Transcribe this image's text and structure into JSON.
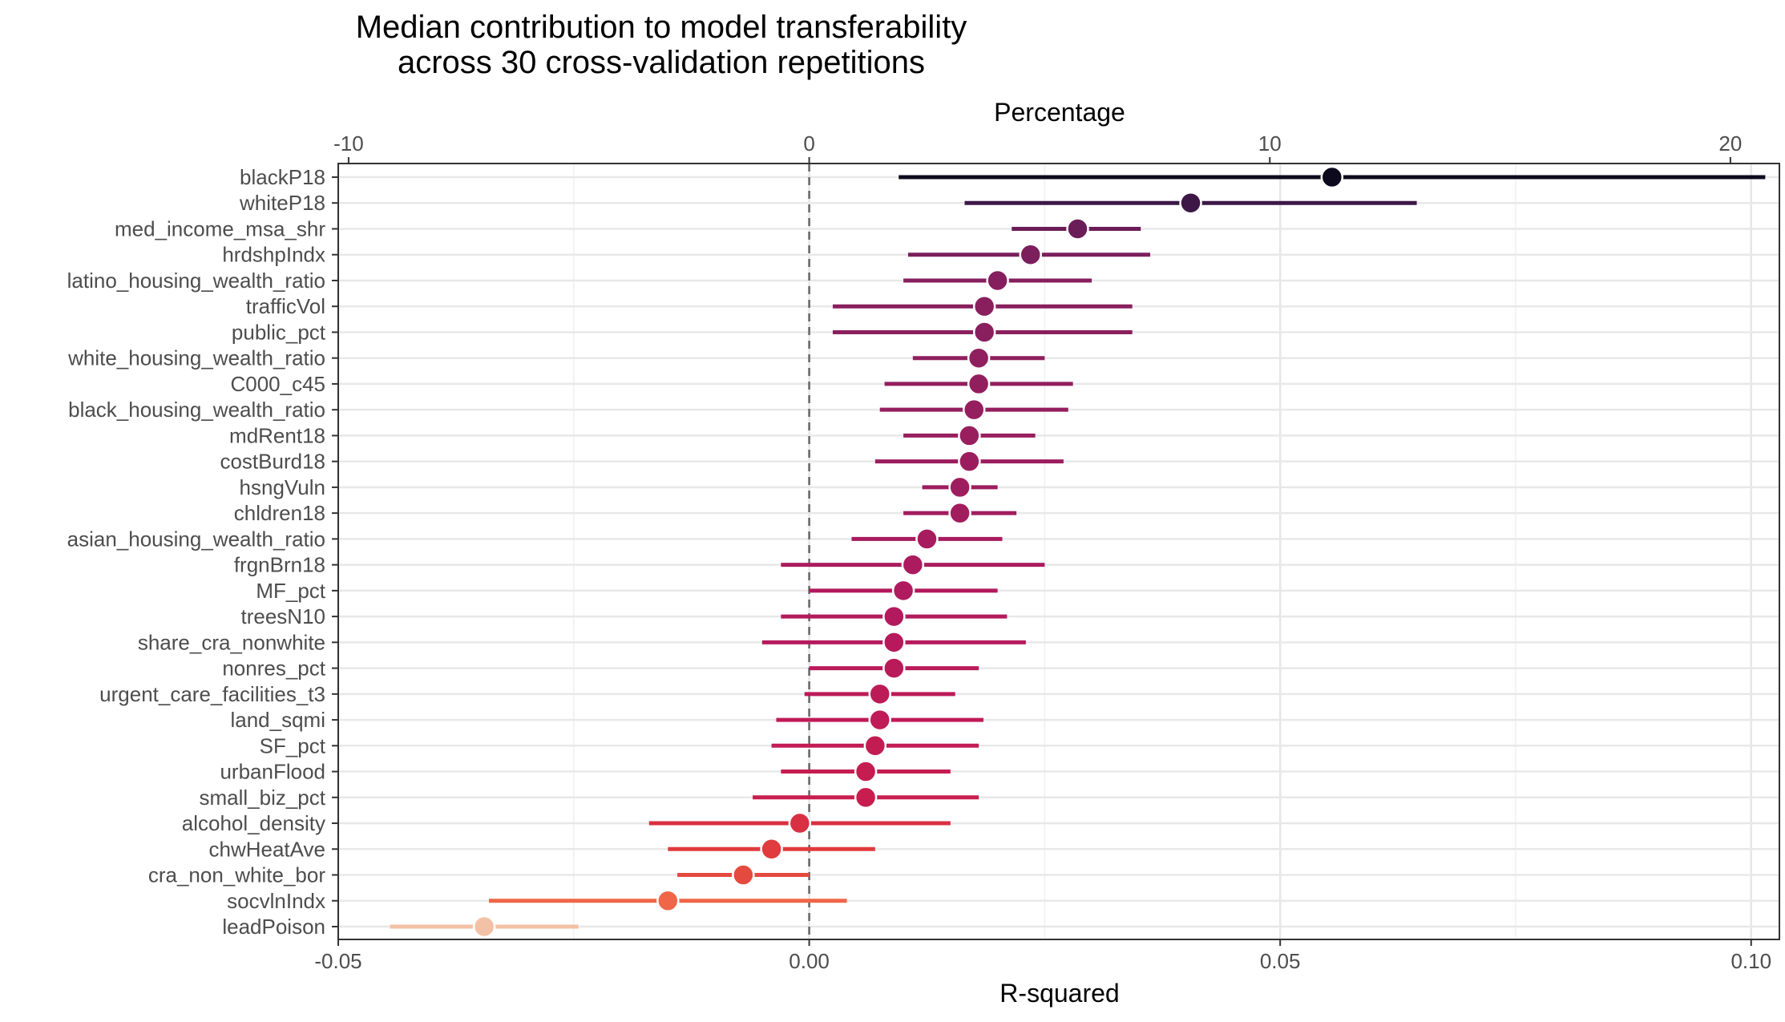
{
  "chart_data": {
    "type": "dot-range",
    "title_lines": [
      "Median contribution to model transferability",
      "across 30 cross-validation repetitions"
    ],
    "xlabel_bottom": "R-squared",
    "xlabel_top": "Percentage",
    "xlim_bottom": [
      -0.05,
      0.103
    ],
    "ticks_bottom": [
      {
        "value": -0.05,
        "label": "-0.05"
      },
      {
        "value": 0.0,
        "label": "0.00"
      },
      {
        "value": 0.05,
        "label": "0.05"
      },
      {
        "value": 0.1,
        "label": "0.10"
      }
    ],
    "ticks_top": [
      {
        "value": -10,
        "label": "-10"
      },
      {
        "value": 0,
        "label": "0"
      },
      {
        "value": 10,
        "label": "10"
      },
      {
        "value": 20,
        "label": "20"
      }
    ],
    "reference_line": 0,
    "grid": true,
    "colors": {
      "dark": "#0d0a1e",
      "purple_dark": "#3d1746",
      "purple": "#6b1d58",
      "magenta": "#8a1f5e",
      "crimson": "#b01a5e",
      "red": "#c51d4f",
      "red_orange": "#e03b3d",
      "orange": "#ef6648",
      "peach": "#f3c1a6"
    },
    "rows": [
      {
        "name": "blackP18",
        "median": 0.0555,
        "low": 0.0095,
        "high": 0.1015,
        "color": "#0d0a1e"
      },
      {
        "name": "whiteP18",
        "median": 0.0405,
        "low": 0.0165,
        "high": 0.0645,
        "color": "#3d1746"
      },
      {
        "name": "med_income_msa_shr",
        "median": 0.0285,
        "low": 0.0215,
        "high": 0.0352,
        "color": "#6b1d58"
      },
      {
        "name": "hrdshpIndx",
        "median": 0.0235,
        "low": 0.0105,
        "high": 0.0362,
        "color": "#7b1f5d"
      },
      {
        "name": "latino_housing_wealth_ratio",
        "median": 0.02,
        "low": 0.01,
        "high": 0.03,
        "color": "#851f5d"
      },
      {
        "name": "trafficVol",
        "median": 0.0186,
        "low": 0.0025,
        "high": 0.0343,
        "color": "#8a1f5e"
      },
      {
        "name": "public_pct",
        "median": 0.0186,
        "low": 0.0025,
        "high": 0.0343,
        "color": "#8a1f5e"
      },
      {
        "name": "white_housing_wealth_ratio",
        "median": 0.018,
        "low": 0.011,
        "high": 0.025,
        "color": "#8f1f5e"
      },
      {
        "name": "C000_c45",
        "median": 0.018,
        "low": 0.008,
        "high": 0.028,
        "color": "#921e5e"
      },
      {
        "name": "black_housing_wealth_ratio",
        "median": 0.0175,
        "low": 0.0075,
        "high": 0.0275,
        "color": "#951e5e"
      },
      {
        "name": "mdRent18",
        "median": 0.017,
        "low": 0.01,
        "high": 0.024,
        "color": "#981e5e"
      },
      {
        "name": "costBurd18",
        "median": 0.017,
        "low": 0.007,
        "high": 0.027,
        "color": "#9b1d5e"
      },
      {
        "name": "hsngVuln",
        "median": 0.016,
        "low": 0.012,
        "high": 0.02,
        "color": "#9e1d5e"
      },
      {
        "name": "chldren18",
        "median": 0.016,
        "low": 0.01,
        "high": 0.022,
        "color": "#a11d5e"
      },
      {
        "name": "asian_housing_wealth_ratio",
        "median": 0.0125,
        "low": 0.0045,
        "high": 0.0205,
        "color": "#a71c5e"
      },
      {
        "name": "frgnBrn18",
        "median": 0.011,
        "low": -0.003,
        "high": 0.025,
        "color": "#ac1b5e"
      },
      {
        "name": "MF_pct",
        "median": 0.01,
        "low": 0.0,
        "high": 0.02,
        "color": "#b01a5e"
      },
      {
        "name": "treesN10",
        "median": 0.009,
        "low": -0.003,
        "high": 0.021,
        "color": "#b31a5d"
      },
      {
        "name": "share_cra_nonwhite",
        "median": 0.009,
        "low": -0.005,
        "high": 0.023,
        "color": "#b61a5c"
      },
      {
        "name": "nonres_pct",
        "median": 0.009,
        "low": 0.0,
        "high": 0.018,
        "color": "#b91a5a"
      },
      {
        "name": "urgent_care_facilities_t3",
        "median": 0.0075,
        "low": -0.0005,
        "high": 0.0155,
        "color": "#bc1b58"
      },
      {
        "name": "land_sqmi",
        "median": 0.0075,
        "low": -0.0035,
        "high": 0.0185,
        "color": "#bf1b56"
      },
      {
        "name": "SF_pct",
        "median": 0.007,
        "low": -0.004,
        "high": 0.018,
        "color": "#c21c53"
      },
      {
        "name": "urbanFlood",
        "median": 0.006,
        "low": -0.003,
        "high": 0.015,
        "color": "#c51d51"
      },
      {
        "name": "small_biz_pct",
        "median": 0.006,
        "low": -0.006,
        "high": 0.018,
        "color": "#c81e4f"
      },
      {
        "name": "alcohol_density",
        "median": -0.001,
        "low": -0.017,
        "high": 0.015,
        "color": "#d92f42"
      },
      {
        "name": "chwHeatAve",
        "median": -0.004,
        "low": -0.015,
        "high": 0.007,
        "color": "#e03b3d"
      },
      {
        "name": "cra_non_white_bor",
        "median": -0.007,
        "low": -0.014,
        "high": 0.0,
        "color": "#e44a3e"
      },
      {
        "name": "socvlnIndx",
        "median": -0.015,
        "low": -0.034,
        "high": 0.004,
        "color": "#ef6648"
      },
      {
        "name": "leadPoison",
        "median": -0.0345,
        "low": -0.0445,
        "high": -0.0245,
        "color": "#f3c1a6"
      }
    ]
  }
}
